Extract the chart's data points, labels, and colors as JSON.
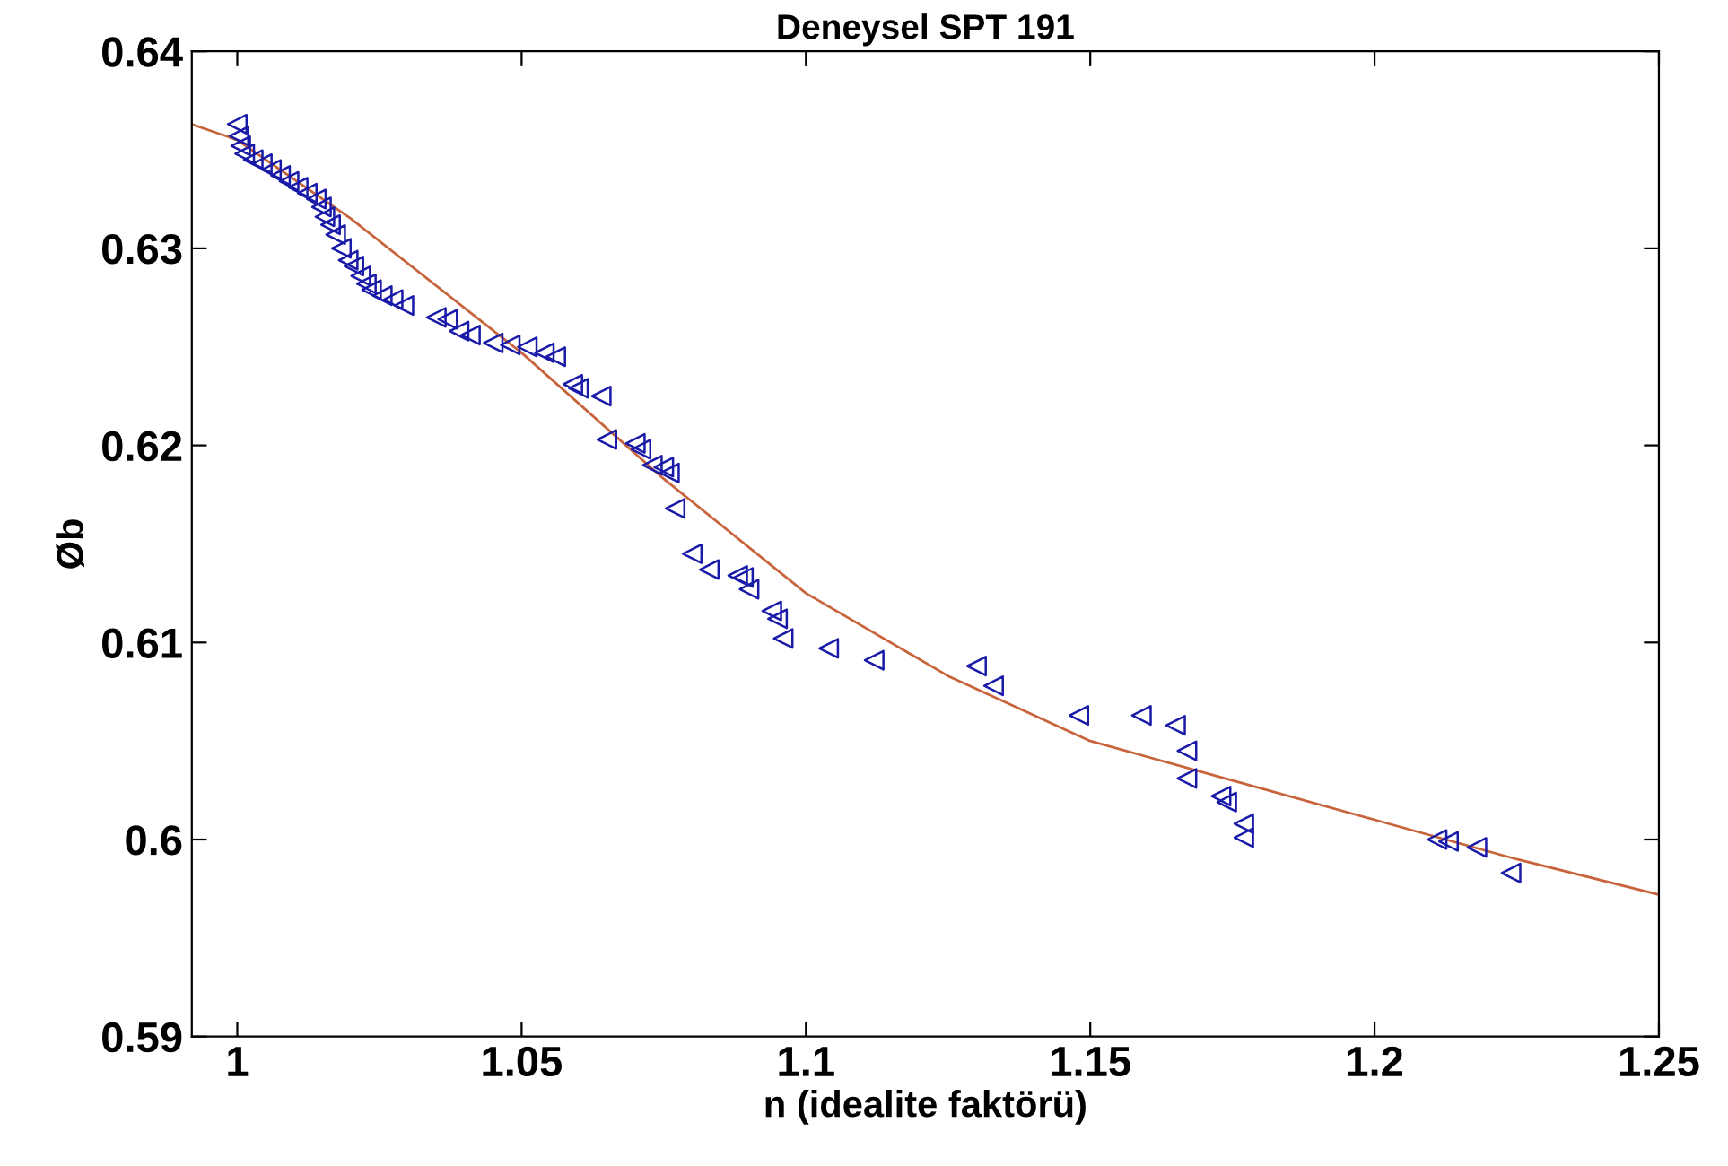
{
  "chart_data": {
    "type": "scatter",
    "title": "Deneysel SPT 191",
    "xlabel": "n (idealite faktörü)",
    "ylabel": "Øb",
    "xlim": [
      0.992,
      1.25
    ],
    "xticks": [
      1,
      1.05,
      1.1,
      1.15,
      1.2,
      1.25
    ],
    "ylim": [
      0.59,
      0.64
    ],
    "yticks": [
      0.59,
      0.6,
      0.61,
      0.62,
      0.63,
      0.64
    ],
    "grid": false,
    "legend": false,
    "series": [
      {
        "color": "#1a1aa8",
        "marker": "triangle_left",
        "x": [
          1.0,
          1.0003,
          1.0006,
          1.0013,
          1.0028,
          1.0044,
          1.006,
          1.0076,
          1.0091,
          1.0107,
          1.0123,
          1.0139,
          1.0148,
          1.0154,
          1.0164,
          1.0173,
          1.0183,
          1.0195,
          1.0205,
          1.0217,
          1.0227,
          1.0236,
          1.0255,
          1.0274,
          1.0293,
          1.035,
          1.037,
          1.039,
          1.041,
          1.045,
          1.048,
          1.051,
          1.054,
          1.056,
          1.059,
          1.06,
          1.064,
          1.065,
          1.07,
          1.071,
          1.073,
          1.075,
          1.076,
          1.077,
          1.08,
          1.083,
          1.088,
          1.089,
          1.09,
          1.094,
          1.095,
          1.096,
          1.104,
          1.112,
          1.13,
          1.133,
          1.148,
          1.159,
          1.165,
          1.167,
          1.167,
          1.173,
          1.174,
          1.177,
          1.177,
          1.211,
          1.213,
          1.218,
          1.224
        ],
        "values": [
          0.6363,
          0.6357,
          0.6352,
          0.6348,
          0.6345,
          0.6343,
          0.634,
          0.6337,
          0.6334,
          0.6331,
          0.6328,
          0.6325,
          0.6321,
          0.6316,
          0.6312,
          0.6307,
          0.63,
          0.6294,
          0.6291,
          0.6286,
          0.6282,
          0.6279,
          0.6276,
          0.6274,
          0.6271,
          0.6265,
          0.6264,
          0.6258,
          0.6256,
          0.6252,
          0.6251,
          0.625,
          0.6247,
          0.6245,
          0.6231,
          0.6229,
          0.6225,
          0.6203,
          0.6201,
          0.6198,
          0.619,
          0.6189,
          0.6186,
          0.6168,
          0.6145,
          0.6137,
          0.6134,
          0.6133,
          0.6127,
          0.6116,
          0.6112,
          0.6102,
          0.6097,
          0.6091,
          0.6088,
          0.6078,
          0.6063,
          0.6063,
          0.6058,
          0.6045,
          0.6031,
          0.6022,
          0.6019,
          0.6008,
          0.6001,
          0.6,
          0.5999,
          0.5996,
          0.5983
        ]
      },
      {
        "type": "line",
        "color": "#c8643c",
        "line_style": "solid",
        "x": [
          0.992,
          1.0,
          1.02,
          1.05,
          1.075,
          1.1,
          1.125,
          1.15,
          1.175,
          1.2,
          1.225,
          1.25
        ],
        "values": [
          0.6363,
          0.6355,
          0.6315,
          0.6247,
          0.6183,
          0.6125,
          0.6083,
          0.605,
          0.603,
          0.601,
          0.599,
          0.5972
        ]
      }
    ]
  }
}
